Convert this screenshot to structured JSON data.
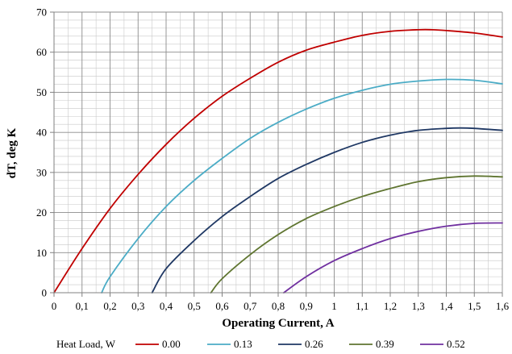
{
  "chart_data": {
    "type": "line",
    "title": "",
    "xlabel": "Operating Current, A",
    "ylabel": "dT, deg K",
    "xlim": [
      0,
      1.6
    ],
    "ylim": [
      0,
      70
    ],
    "x_ticks": [
      "0",
      "0,1",
      "0,2",
      "0,3",
      "0,4",
      "0,5",
      "0,6",
      "0,7",
      "0,8",
      "0,9",
      "1",
      "1,1",
      "1,2",
      "1,3",
      "1,4",
      "1,5",
      "1,6"
    ],
    "y_ticks": [
      "0",
      "10",
      "20",
      "30",
      "40",
      "50",
      "60",
      "70"
    ],
    "grid": "on (major and minor)",
    "legend_title": "Heat Load, W",
    "legend_position": "bottom",
    "series": [
      {
        "name": "0.00",
        "color": "#C00000",
        "x": [
          0,
          0.1,
          0.2,
          0.3,
          0.4,
          0.5,
          0.6,
          0.7,
          0.8,
          0.9,
          1.0,
          1.1,
          1.2,
          1.3,
          1.35,
          1.4,
          1.5,
          1.6
        ],
        "y": [
          0,
          11,
          21,
          29.5,
          37,
          43.5,
          49,
          53.5,
          57.5,
          60.5,
          62.5,
          64.2,
          65.2,
          65.6,
          65.6,
          65.4,
          64.8,
          63.8
        ]
      },
      {
        "name": "0.13",
        "color": "#4BACC6",
        "x": [
          0.17,
          0.2,
          0.3,
          0.4,
          0.5,
          0.6,
          0.7,
          0.8,
          0.9,
          1.0,
          1.1,
          1.2,
          1.3,
          1.4,
          1.5,
          1.6
        ],
        "y": [
          0,
          4,
          13.5,
          21.5,
          28,
          33.5,
          38.5,
          42.5,
          45.8,
          48.5,
          50.5,
          52,
          52.8,
          53.2,
          53,
          52.1
        ]
      },
      {
        "name": "0.26",
        "color": "#1F3864",
        "x": [
          0.35,
          0.4,
          0.5,
          0.6,
          0.7,
          0.8,
          0.9,
          1.0,
          1.1,
          1.2,
          1.3,
          1.4,
          1.45,
          1.5,
          1.6
        ],
        "y": [
          0,
          6,
          13,
          19,
          24,
          28.5,
          32,
          35,
          37.5,
          39.3,
          40.5,
          41,
          41.1,
          41,
          40.5
        ]
      },
      {
        "name": "0.39",
        "color": "#5F7530",
        "x": [
          0.56,
          0.6,
          0.7,
          0.8,
          0.9,
          1.0,
          1.1,
          1.2,
          1.3,
          1.4,
          1.5,
          1.6
        ],
        "y": [
          0,
          3.5,
          9.5,
          14.5,
          18.5,
          21.5,
          24,
          26,
          27.7,
          28.7,
          29.1,
          28.9
        ]
      },
      {
        "name": "0.52",
        "color": "#7030A0",
        "x": [
          0.82,
          0.9,
          1.0,
          1.1,
          1.2,
          1.3,
          1.4,
          1.5,
          1.6
        ],
        "y": [
          0,
          4,
          8,
          11,
          13.5,
          15.3,
          16.6,
          17.3,
          17.4
        ]
      }
    ]
  }
}
